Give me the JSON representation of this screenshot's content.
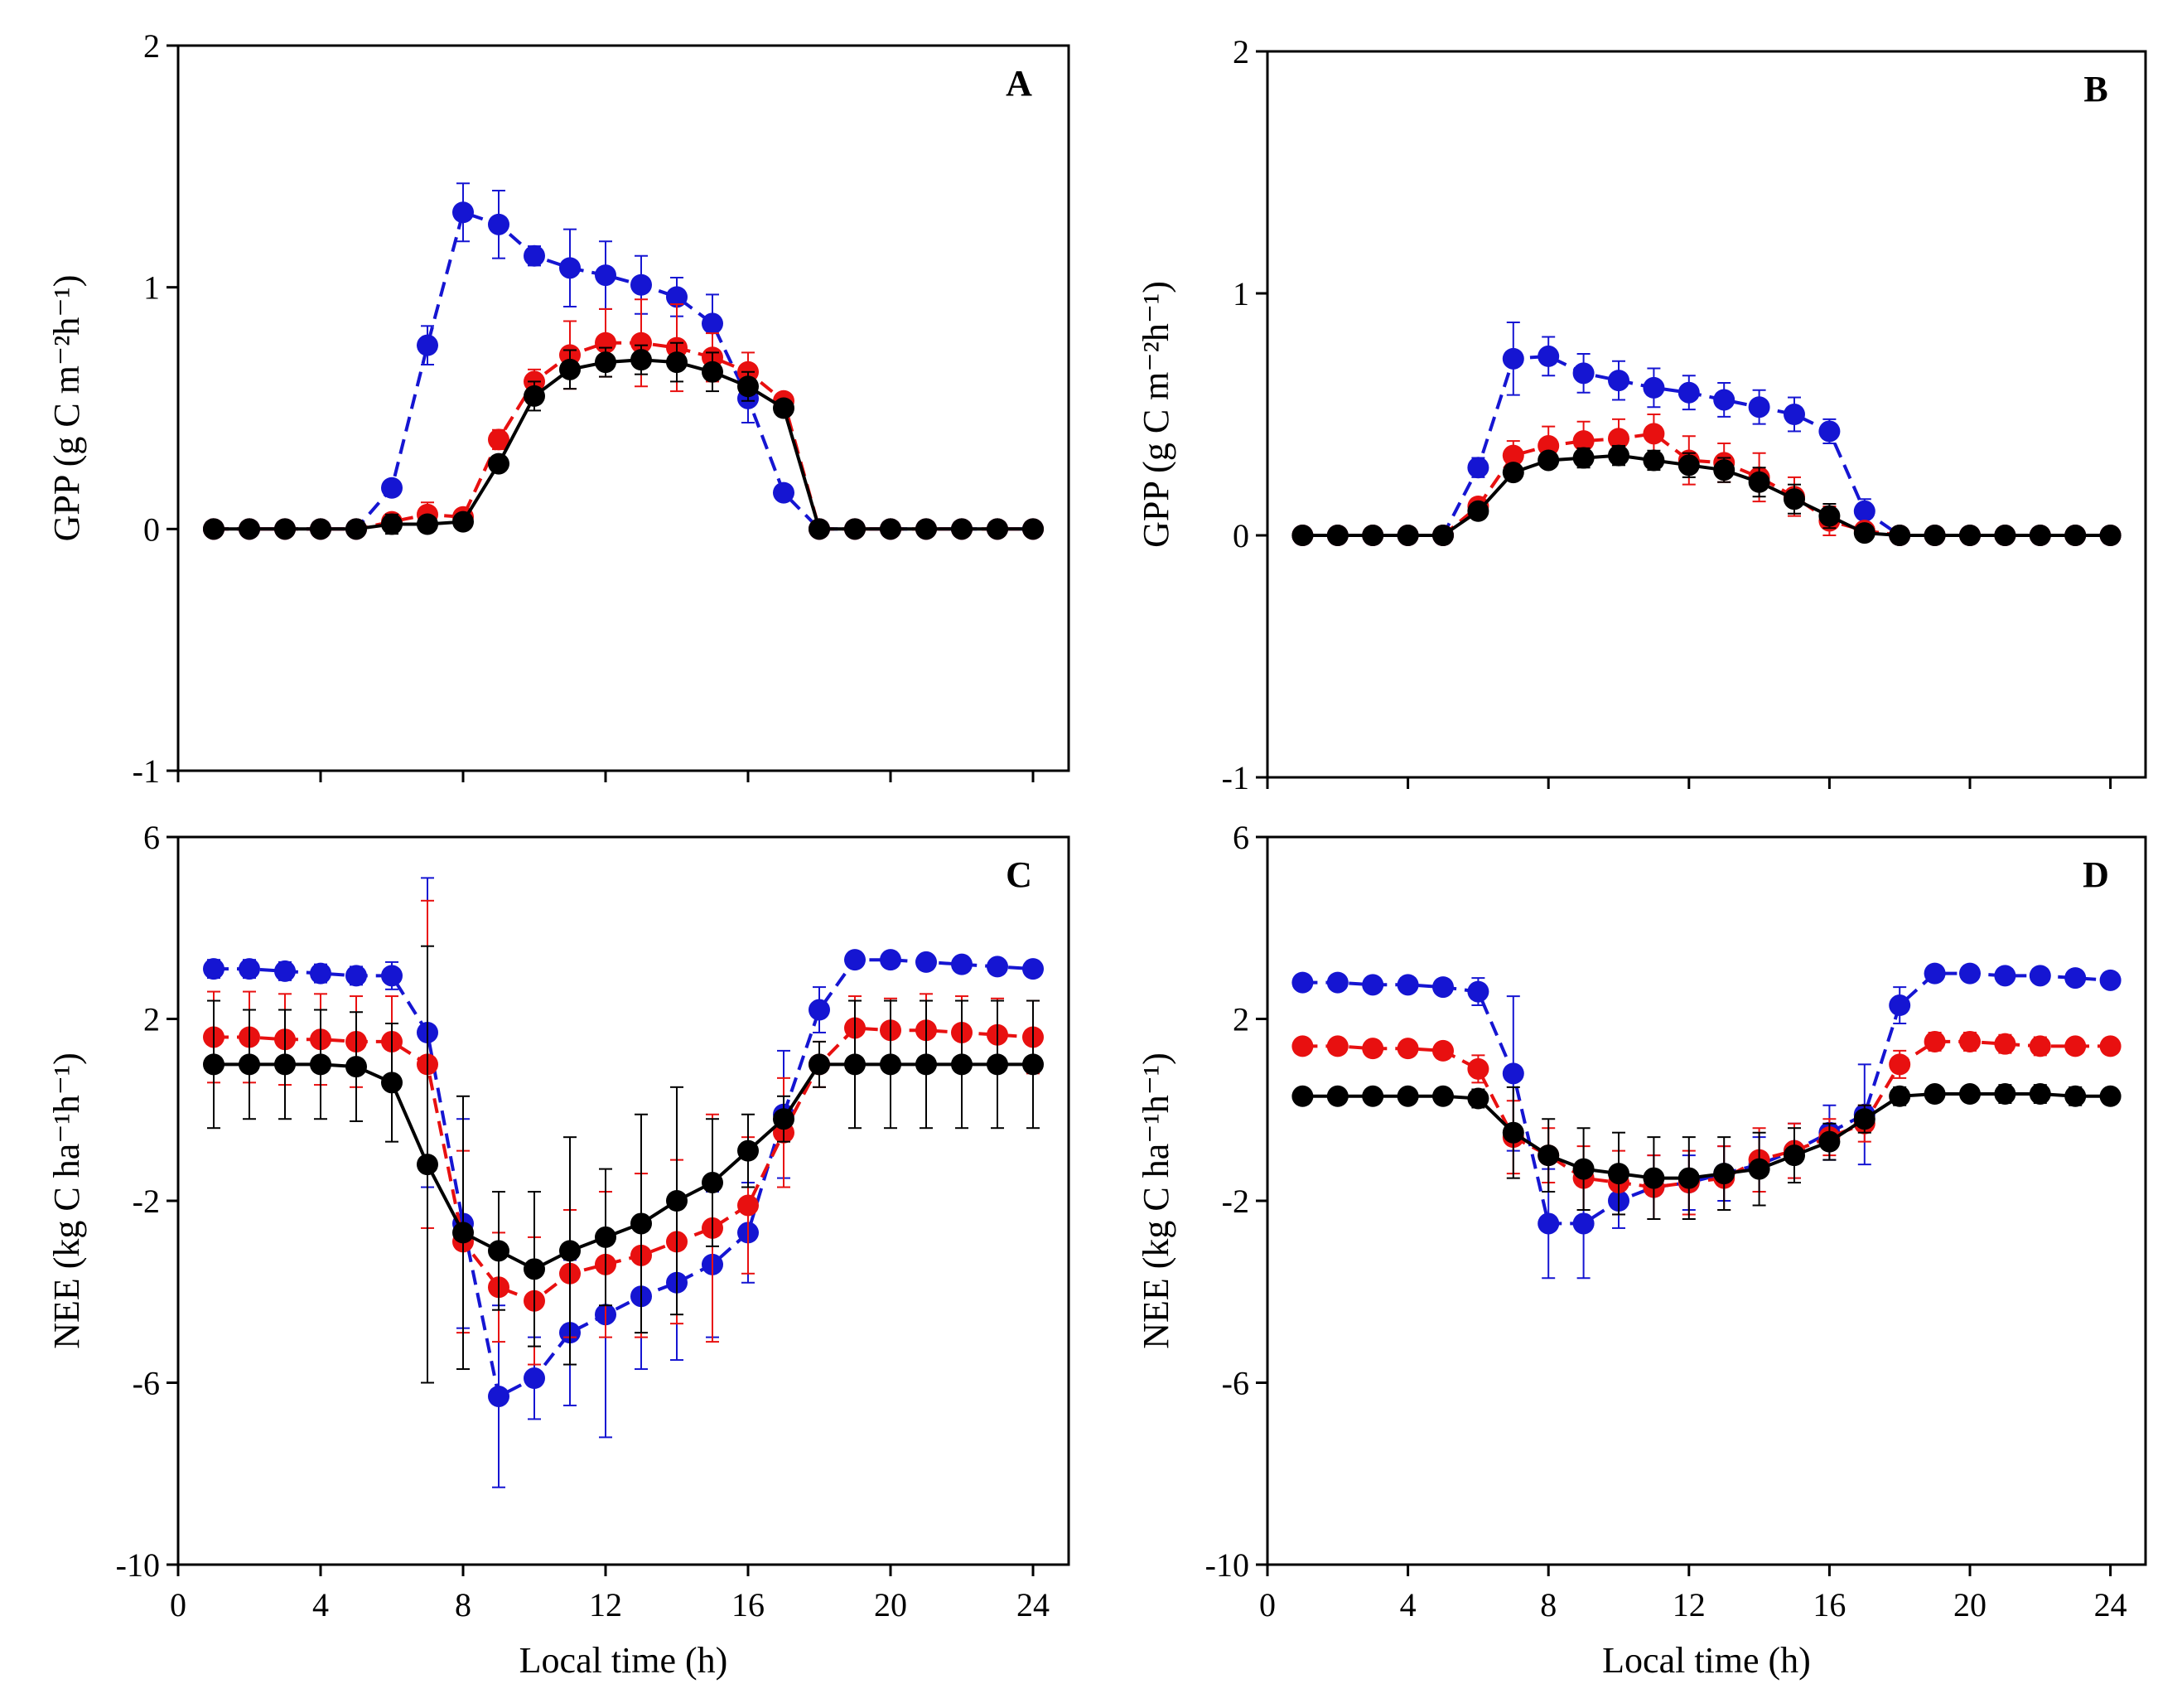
{
  "chart_data": [
    {
      "type": "line",
      "panel_label": "A",
      "ylabel": "GPP (g C m⁻²h⁻¹)",
      "xlabel": "",
      "ylim": [
        -1,
        2
      ],
      "yticks": [
        -1,
        0,
        1,
        2
      ],
      "ytick_labels": [
        "-1",
        "0",
        "1",
        "2"
      ],
      "xlim": [
        0,
        25
      ],
      "xticks": [
        0,
        4,
        8,
        12,
        16,
        20,
        24
      ],
      "xtick_labels": [],
      "x": [
        1,
        2,
        3,
        4,
        5,
        6,
        7,
        8,
        9,
        10,
        11,
        12,
        13,
        14,
        15,
        16,
        17,
        18,
        19,
        20,
        21,
        22,
        23,
        24
      ],
      "series": [
        {
          "name": "blue",
          "color": "#1515d2",
          "dash": true,
          "values": [
            0,
            0,
            0,
            0,
            0,
            0.17,
            0.76,
            1.31,
            1.26,
            1.13,
            1.08,
            1.05,
            1.01,
            0.96,
            0.85,
            0.54,
            0.15,
            0,
            0,
            0,
            0,
            0,
            0,
            0
          ],
          "errors": [
            0,
            0,
            0,
            0,
            0,
            0.02,
            0.08,
            0.12,
            0.14,
            0.04,
            0.16,
            0.14,
            0.12,
            0.08,
            0.12,
            0.1,
            0.02,
            0,
            0,
            0,
            0,
            0,
            0,
            0
          ]
        },
        {
          "name": "red",
          "color": "#e81010",
          "dash": true,
          "values": [
            0,
            0,
            0,
            0,
            0,
            0.03,
            0.06,
            0.05,
            0.37,
            0.61,
            0.72,
            0.77,
            0.77,
            0.75,
            0.71,
            0.65,
            0.53,
            0,
            0,
            0,
            0,
            0,
            0,
            0
          ],
          "errors": [
            0,
            0,
            0,
            0,
            0,
            0.03,
            0.05,
            0.03,
            0.04,
            0.05,
            0.14,
            0.14,
            0.18,
            0.18,
            0.1,
            0.08,
            0.03,
            0,
            0,
            0,
            0,
            0,
            0,
            0
          ]
        },
        {
          "name": "black",
          "color": "#000000",
          "dash": false,
          "values": [
            0,
            0,
            0,
            0,
            0,
            0.02,
            0.02,
            0.03,
            0.27,
            0.55,
            0.66,
            0.69,
            0.7,
            0.69,
            0.65,
            0.59,
            0.5,
            0,
            0,
            0,
            0,
            0,
            0,
            0
          ],
          "errors": [
            0,
            0,
            0,
            0,
            0,
            0.04,
            0.02,
            0.02,
            0.02,
            0.06,
            0.08,
            0.06,
            0.06,
            0.08,
            0.08,
            0.06,
            0.03,
            0,
            0,
            0,
            0,
            0,
            0,
            0
          ]
        }
      ]
    },
    {
      "type": "line",
      "panel_label": "B",
      "ylabel": "GPP (g C m⁻²h⁻¹)",
      "xlabel": "",
      "ylim": [
        -1,
        2
      ],
      "yticks": [
        -1,
        0,
        1,
        2
      ],
      "ytick_labels": [
        "-1",
        "0",
        "1",
        "2"
      ],
      "xlim": [
        0,
        25
      ],
      "xticks": [
        0,
        4,
        8,
        12,
        16,
        20,
        24
      ],
      "xtick_labels": [],
      "x": [
        1,
        2,
        3,
        4,
        5,
        6,
        7,
        8,
        9,
        10,
        11,
        12,
        13,
        14,
        15,
        16,
        17,
        18,
        19,
        20,
        21,
        22,
        23,
        24
      ],
      "series": [
        {
          "name": "blue",
          "color": "#1515d2",
          "dash": true,
          "values": [
            0,
            0,
            0,
            0,
            0,
            0.28,
            0.73,
            0.74,
            0.67,
            0.64,
            0.61,
            0.59,
            0.56,
            0.53,
            0.5,
            0.43,
            0.1,
            0,
            0,
            0,
            0,
            0,
            0,
            0
          ],
          "errors": [
            0,
            0,
            0,
            0,
            0,
            0.04,
            0.15,
            0.08,
            0.08,
            0.08,
            0.08,
            0.07,
            0.07,
            0.07,
            0.07,
            0.05,
            0.05,
            0,
            0,
            0,
            0,
            0,
            0,
            0
          ]
        },
        {
          "name": "red",
          "color": "#e81010",
          "dash": true,
          "values": [
            0,
            0,
            0,
            0,
            0,
            0.12,
            0.33,
            0.37,
            0.39,
            0.4,
            0.42,
            0.31,
            0.3,
            0.24,
            0.16,
            0.06,
            0.02,
            0,
            0,
            0,
            0,
            0,
            0,
            0
          ],
          "errors": [
            0,
            0,
            0,
            0,
            0,
            0.03,
            0.06,
            0.08,
            0.08,
            0.08,
            0.08,
            0.1,
            0.08,
            0.1,
            0.08,
            0.06,
            0.02,
            0,
            0,
            0,
            0,
            0,
            0,
            0
          ]
        },
        {
          "name": "black",
          "color": "#000000",
          "dash": false,
          "values": [
            0,
            0,
            0,
            0,
            0,
            0.1,
            0.26,
            0.31,
            0.32,
            0.33,
            0.31,
            0.29,
            0.27,
            0.22,
            0.15,
            0.08,
            0.01,
            0,
            0,
            0,
            0,
            0,
            0,
            0
          ],
          "errors": [
            0,
            0,
            0,
            0,
            0,
            0.02,
            0.03,
            0.03,
            0.04,
            0.04,
            0.04,
            0.05,
            0.05,
            0.06,
            0.06,
            0.05,
            0.02,
            0,
            0,
            0,
            0,
            0,
            0,
            0
          ]
        }
      ]
    },
    {
      "type": "line",
      "panel_label": "C",
      "ylabel": "NEE (kg C ha⁻¹h⁻¹)",
      "xlabel": "Local time (h)",
      "ylim": [
        -10,
        6
      ],
      "yticks": [
        -10,
        -6,
        -2,
        2,
        6
      ],
      "ytick_labels": [
        "-10",
        "-6",
        "-2",
        "2",
        "6"
      ],
      "xlim": [
        0,
        25
      ],
      "xticks": [
        0,
        4,
        8,
        12,
        16,
        20,
        24
      ],
      "xtick_labels": [
        "0",
        "4",
        "8",
        "12",
        "16",
        "20",
        "24"
      ],
      "x": [
        1,
        2,
        3,
        4,
        5,
        6,
        7,
        8,
        9,
        10,
        11,
        12,
        13,
        14,
        15,
        16,
        17,
        18,
        19,
        20,
        21,
        22,
        23,
        24
      ],
      "series": [
        {
          "name": "blue",
          "color": "#1515d2",
          "dash": true,
          "values": [
            3.1,
            3.1,
            3.05,
            3.0,
            2.95,
            2.95,
            1.7,
            -2.5,
            -6.3,
            -5.9,
            -4.9,
            -4.5,
            -4.1,
            -3.8,
            -3.4,
            -2.7,
            -0.1,
            2.2,
            3.3,
            3.3,
            3.25,
            3.2,
            3.15,
            3.1
          ],
          "errors": [
            0.2,
            0.2,
            0.2,
            0.2,
            0.2,
            0.3,
            3.4,
            2.3,
            2.0,
            0.9,
            1.6,
            2.7,
            1.6,
            1.7,
            1.6,
            1.1,
            1.4,
            0.5,
            0.1,
            0.1,
            0.1,
            0.1,
            0.1,
            0.1
          ]
        },
        {
          "name": "red",
          "color": "#e81010",
          "dash": true,
          "values": [
            1.6,
            1.6,
            1.55,
            1.55,
            1.5,
            1.5,
            1.0,
            -2.9,
            -3.9,
            -4.2,
            -3.6,
            -3.4,
            -3.2,
            -2.9,
            -2.6,
            -2.1,
            -0.5,
            1.0,
            1.8,
            1.75,
            1.75,
            1.7,
            1.65,
            1.6
          ],
          "errors": [
            1.0,
            1.0,
            1.0,
            1.0,
            1.0,
            1.0,
            3.6,
            2.0,
            1.2,
            1.4,
            1.4,
            1.6,
            1.8,
            1.8,
            2.5,
            1.5,
            1.2,
            0.5,
            0.7,
            0.7,
            0.8,
            0.8,
            0.8,
            0.8
          ]
        },
        {
          "name": "black",
          "color": "#000000",
          "dash": false,
          "values": [
            1.0,
            1.0,
            1.0,
            1.0,
            0.95,
            0.6,
            -1.2,
            -2.7,
            -3.1,
            -3.5,
            -3.1,
            -2.8,
            -2.5,
            -2.0,
            -1.6,
            -0.9,
            -0.2,
            1.0,
            1.0,
            1.0,
            1.0,
            1.0,
            1.0,
            1.0
          ],
          "errors": [
            1.4,
            1.2,
            1.2,
            1.2,
            1.2,
            1.3,
            4.8,
            3.0,
            1.3,
            1.7,
            2.5,
            1.5,
            2.4,
            2.5,
            1.4,
            0.8,
            0.5,
            0.5,
            1.4,
            1.4,
            1.4,
            1.4,
            1.4,
            1.4
          ]
        }
      ]
    },
    {
      "type": "line",
      "panel_label": "D",
      "ylabel": "NEE (kg C ha⁻¹h⁻¹)",
      "xlabel": "Local time (h)",
      "ylim": [
        -10,
        6
      ],
      "yticks": [
        -10,
        -6,
        -2,
        2,
        6
      ],
      "ytick_labels": [
        "-10",
        "-6",
        "-2",
        "2",
        "6"
      ],
      "xlim": [
        0,
        25
      ],
      "xticks": [
        0,
        4,
        8,
        12,
        16,
        20,
        24
      ],
      "xtick_labels": [
        "0",
        "4",
        "8",
        "12",
        "16",
        "20",
        "24"
      ],
      "x": [
        1,
        2,
        3,
        4,
        5,
        6,
        7,
        8,
        9,
        10,
        11,
        12,
        13,
        14,
        15,
        16,
        17,
        18,
        19,
        20,
        21,
        22,
        23,
        24
      ],
      "series": [
        {
          "name": "blue",
          "color": "#1515d2",
          "dash": true,
          "values": [
            2.8,
            2.8,
            2.75,
            2.75,
            2.7,
            2.6,
            0.8,
            -2.5,
            -2.5,
            -2.0,
            -1.7,
            -1.6,
            -1.4,
            -1.2,
            -0.9,
            -0.5,
            -0.1,
            2.3,
            3.0,
            3.0,
            2.95,
            2.95,
            2.9,
            2.85
          ],
          "errors": [
            0.1,
            0.1,
            0.1,
            0.1,
            0.1,
            0.3,
            1.7,
            1.2,
            1.2,
            0.6,
            0.7,
            0.6,
            0.6,
            0.6,
            0.6,
            0.6,
            1.1,
            0.4,
            0.1,
            0.1,
            0.1,
            0.1,
            0.1,
            0.1
          ]
        },
        {
          "name": "red",
          "color": "#e81010",
          "dash": true,
          "values": [
            1.4,
            1.4,
            1.35,
            1.35,
            1.3,
            0.9,
            -0.6,
            -1.0,
            -1.5,
            -1.6,
            -1.7,
            -1.6,
            -1.5,
            -1.1,
            -0.9,
            -0.6,
            -0.3,
            1.0,
            1.5,
            1.5,
            1.45,
            1.4,
            1.4,
            1.4
          ],
          "errors": [
            0.1,
            0.1,
            0.1,
            0.1,
            0.1,
            0.3,
            0.8,
            0.6,
            0.7,
            0.7,
            0.7,
            0.7,
            0.7,
            0.7,
            0.6,
            0.4,
            0.4,
            0.3,
            0.2,
            0.2,
            0.2,
            0.2,
            0.1,
            0.1
          ]
        },
        {
          "name": "black",
          "color": "#000000",
          "dash": false,
          "values": [
            0.3,
            0.3,
            0.3,
            0.3,
            0.3,
            0.25,
            -0.5,
            -1.0,
            -1.3,
            -1.4,
            -1.5,
            -1.5,
            -1.4,
            -1.3,
            -1.0,
            -0.7,
            -0.2,
            0.3,
            0.35,
            0.35,
            0.35,
            0.35,
            0.3,
            0.3
          ],
          "errors": [
            0.1,
            0.1,
            0.1,
            0.1,
            0.1,
            0.2,
            1.0,
            0.8,
            0.9,
            0.9,
            0.9,
            0.9,
            0.8,
            0.8,
            0.6,
            0.4,
            0.3,
            0.2,
            0.1,
            0.1,
            0.2,
            0.2,
            0.2,
            0.1
          ]
        }
      ]
    }
  ]
}
